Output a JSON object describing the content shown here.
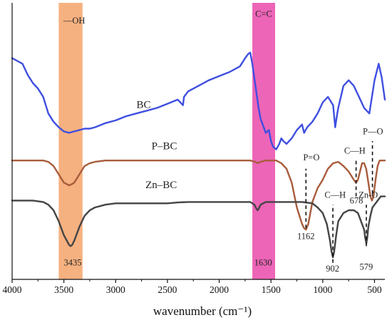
{
  "chart_data": {
    "type": "line",
    "xlabel": "wavenumber (cm⁻¹)",
    "ylabel": "",
    "title": "",
    "xlim": [
      4000,
      400
    ],
    "xticks": [
      "4000",
      "3500",
      "3000",
      "2500",
      "2000",
      "1500",
      "1000",
      "500"
    ],
    "x_reversed": true,
    "y_ticks_shown": false,
    "bands": [
      {
        "name": "hydroxyl-band",
        "label": "—OH",
        "from": 3550,
        "to": 3320,
        "color": "#f4a36a"
      },
      {
        "name": "cc-band",
        "label": "C=C",
        "from": 1680,
        "to": 1460,
        "color": "#ea4aaa"
      }
    ],
    "series": [
      {
        "name": "BC",
        "color": "#3f4fe0",
        "x": [
          4000,
          3950,
          3900,
          3850,
          3800,
          3750,
          3700,
          3650,
          3600,
          3550,
          3500,
          3450,
          3400,
          3350,
          3300,
          3250,
          3200,
          3100,
          3000,
          2900,
          2800,
          2700,
          2600,
          2500,
          2400,
          2350,
          2340,
          2300,
          2200,
          2100,
          2000,
          1900,
          1800,
          1750,
          1720,
          1700,
          1680,
          1650,
          1620,
          1600,
          1570,
          1550,
          1520,
          1500,
          1480,
          1450,
          1420,
          1400,
          1380,
          1350,
          1300,
          1250,
          1200,
          1180,
          1150,
          1100,
          1050,
          1000,
          950,
          900,
          880,
          860,
          850,
          800,
          750,
          700,
          650,
          600,
          550,
          500,
          460,
          430,
          400
        ],
        "y": [
          0.8,
          0.79,
          0.78,
          0.74,
          0.71,
          0.69,
          0.66,
          0.6,
          0.57,
          0.55,
          0.535,
          0.53,
          0.535,
          0.54,
          0.545,
          0.545,
          0.55,
          0.565,
          0.575,
          0.59,
          0.6,
          0.61,
          0.62,
          0.635,
          0.65,
          0.63,
          0.66,
          0.68,
          0.7,
          0.72,
          0.735,
          0.75,
          0.77,
          0.8,
          0.815,
          0.82,
          0.78,
          0.7,
          0.62,
          0.58,
          0.55,
          0.53,
          0.54,
          0.5,
          0.48,
          0.47,
          0.49,
          0.51,
          0.5,
          0.49,
          0.51,
          0.54,
          0.56,
          0.53,
          0.55,
          0.57,
          0.6,
          0.64,
          0.66,
          0.63,
          0.55,
          0.6,
          0.62,
          0.7,
          0.72,
          0.7,
          0.66,
          0.62,
          0.6,
          0.72,
          0.78,
          0.73,
          0.65
        ]
      },
      {
        "name": "P–BC",
        "color": "#a85c3c",
        "x": [
          4000,
          3900,
          3800,
          3700,
          3650,
          3600,
          3550,
          3500,
          3450,
          3420,
          3400,
          3350,
          3300,
          3250,
          3200,
          3100,
          3000,
          2800,
          2500,
          2200,
          2000,
          1800,
          1700,
          1650,
          1630,
          1600,
          1550,
          1500,
          1450,
          1400,
          1350,
          1300,
          1250,
          1200,
          1180,
          1162,
          1140,
          1100,
          1050,
          1000,
          950,
          900,
          850,
          800,
          750,
          700,
          678,
          660,
          640,
          620,
          600,
          580,
          560,
          540,
          525,
          510,
          490,
          470,
          450,
          430,
          410,
          400
        ],
        "y": [
          0.43,
          0.43,
          0.43,
          0.43,
          0.425,
          0.41,
          0.38,
          0.35,
          0.34,
          0.345,
          0.35,
          0.38,
          0.41,
          0.42,
          0.425,
          0.43,
          0.43,
          0.43,
          0.43,
          0.43,
          0.43,
          0.43,
          0.43,
          0.425,
          0.42,
          0.425,
          0.43,
          0.43,
          0.43,
          0.42,
          0.4,
          0.35,
          0.26,
          0.2,
          0.185,
          0.18,
          0.2,
          0.28,
          0.33,
          0.36,
          0.4,
          0.42,
          0.425,
          0.41,
          0.39,
          0.36,
          0.35,
          0.36,
          0.39,
          0.42,
          0.42,
          0.4,
          0.35,
          0.3,
          0.285,
          0.3,
          0.36,
          0.41,
          0.43,
          0.43,
          0.43,
          0.43
        ]
      },
      {
        "name": "Zn–BC",
        "color": "#444444",
        "x": [
          4000,
          3900,
          3800,
          3700,
          3650,
          3600,
          3550,
          3500,
          3450,
          3435,
          3420,
          3400,
          3350,
          3300,
          3250,
          3200,
          3100,
          3000,
          2900,
          2800,
          2700,
          2600,
          2500,
          2400,
          2300,
          2200,
          2100,
          2000,
          1900,
          1800,
          1700,
          1660,
          1640,
          1630,
          1620,
          1600,
          1550,
          1500,
          1400,
          1300,
          1200,
          1100,
          1050,
          1000,
          960,
          930,
          915,
          902,
          890,
          870,
          850,
          800,
          750,
          700,
          660,
          640,
          620,
          600,
          590,
          579,
          570,
          560,
          540,
          520,
          500,
          480,
          460,
          440,
          420,
          400
        ],
        "y": [
          0.285,
          0.285,
          0.285,
          0.28,
          0.27,
          0.25,
          0.21,
          0.16,
          0.125,
          0.12,
          0.125,
          0.14,
          0.19,
          0.23,
          0.25,
          0.26,
          0.27,
          0.275,
          0.275,
          0.275,
          0.275,
          0.275,
          0.275,
          0.278,
          0.28,
          0.28,
          0.28,
          0.28,
          0.28,
          0.28,
          0.28,
          0.27,
          0.255,
          0.25,
          0.255,
          0.27,
          0.28,
          0.28,
          0.28,
          0.28,
          0.28,
          0.275,
          0.26,
          0.24,
          0.2,
          0.14,
          0.1,
          0.08,
          0.1,
          0.16,
          0.21,
          0.24,
          0.25,
          0.25,
          0.24,
          0.22,
          0.2,
          0.18,
          0.15,
          0.13,
          0.15,
          0.19,
          0.23,
          0.26,
          0.27,
          0.28,
          0.29,
          0.3,
          0.3,
          0.3
        ]
      }
    ],
    "ylim": [
      0,
      1
    ],
    "annotations": [
      {
        "name": "label-bc",
        "text": "BC",
        "x": 2730,
        "y": 0.62,
        "color": "#222222"
      },
      {
        "name": "label-pbc",
        "text": "P–BC",
        "x": 2530,
        "y": 0.47,
        "color": "#222222"
      },
      {
        "name": "label-znbc",
        "text": "Zn–BC",
        "x": 2560,
        "y": 0.33,
        "color": "#222222"
      },
      {
        "name": "label-oh",
        "text": "—OH",
        "x": 3400,
        "y": 0.925,
        "color": "#222222"
      },
      {
        "name": "label-cc",
        "text": "C=C",
        "x": 1570,
        "y": 0.95,
        "color": "#222222"
      },
      {
        "name": "label-3435",
        "text": "3435",
        "x": 3415,
        "y": 0.05,
        "color": "#222222"
      },
      {
        "name": "label-1630",
        "text": "1630",
        "x": 1575,
        "y": 0.05,
        "color": "#222222"
      },
      {
        "name": "label-po",
        "text": "P=O",
        "x": 1110,
        "y": 0.43,
        "color": "#222222"
      },
      {
        "name": "label-1162",
        "text": "1162",
        "x": 1162,
        "y": 0.145,
        "color": "#222222"
      },
      {
        "name": "label-ch-pbc",
        "text": "C—H",
        "x": 690,
        "y": 0.455,
        "color": "#222222"
      },
      {
        "name": "label-678",
        "text": "678",
        "x": 675,
        "y": 0.275,
        "color": "#222222"
      },
      {
        "name": "label-p-o",
        "text": "P—O",
        "x": 515,
        "y": 0.525,
        "color": "#222222"
      },
      {
        "name": "label-ch-znbc",
        "text": "C—H",
        "x": 880,
        "y": 0.295,
        "color": "#222222"
      },
      {
        "name": "label-zno",
        "text": "Zn-O",
        "x": 560,
        "y": 0.295,
        "color": "#222222"
      },
      {
        "name": "label-902",
        "text": "902",
        "x": 905,
        "y": 0.028,
        "color": "#222222"
      },
      {
        "name": "label-579",
        "text": "579",
        "x": 580,
        "y": 0.035,
        "color": "#222222"
      }
    ],
    "dashed_markers": [
      {
        "name": "marker-1162",
        "x": 1162,
        "y1": 0.185,
        "y2": 0.4
      },
      {
        "name": "marker-678",
        "x": 678,
        "y1": 0.3,
        "y2": 0.43
      },
      {
        "name": "marker-po",
        "x": 520,
        "y1": 0.31,
        "y2": 0.5
      },
      {
        "name": "marker-902",
        "x": 902,
        "y1": 0.06,
        "y2": 0.27
      },
      {
        "name": "marker-579",
        "x": 579,
        "y1": 0.12,
        "y2": 0.27
      }
    ]
  }
}
